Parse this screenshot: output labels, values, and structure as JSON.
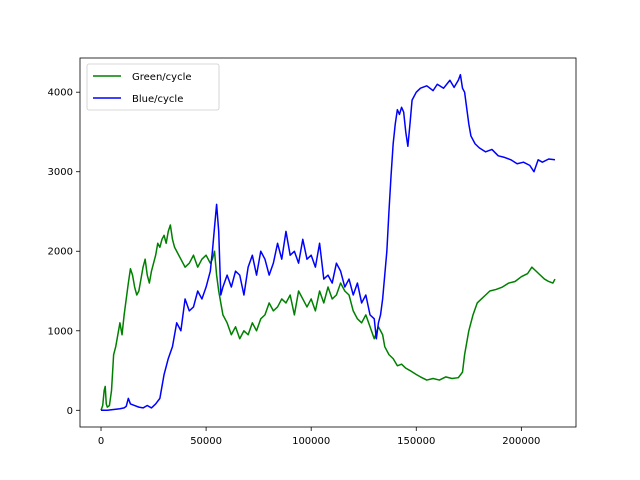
{
  "chart_data": {
    "type": "line",
    "title": "",
    "xlabel": "",
    "ylabel": "",
    "xlim": [
      -10000,
      226000
    ],
    "ylim": [
      -210,
      4430
    ],
    "x_ticks": [
      0,
      50000,
      100000,
      150000,
      200000
    ],
    "x_tick_labels": [
      "0",
      "50000",
      "100000",
      "150000",
      "200000"
    ],
    "y_ticks": [
      0,
      1000,
      2000,
      3000,
      4000
    ],
    "y_tick_labels": [
      "0",
      "1000",
      "2000",
      "3000",
      "4000"
    ],
    "grid": false,
    "legend_position": "top-left",
    "series": [
      {
        "name": "Green/cycle",
        "color": "#008000",
        "points": [
          [
            0,
            0
          ],
          [
            800,
            60
          ],
          [
            1500,
            250
          ],
          [
            2000,
            300
          ],
          [
            2500,
            80
          ],
          [
            3000,
            40
          ],
          [
            4000,
            60
          ],
          [
            5000,
            250
          ],
          [
            6000,
            700
          ],
          [
            7000,
            800
          ],
          [
            8000,
            950
          ],
          [
            9000,
            1100
          ],
          [
            10000,
            950
          ],
          [
            11000,
            1200
          ],
          [
            12000,
            1400
          ],
          [
            13000,
            1600
          ],
          [
            14000,
            1780
          ],
          [
            15000,
            1700
          ],
          [
            16000,
            1550
          ],
          [
            17000,
            1450
          ],
          [
            18000,
            1500
          ],
          [
            19000,
            1650
          ],
          [
            20000,
            1800
          ],
          [
            21000,
            1900
          ],
          [
            22000,
            1700
          ],
          [
            23000,
            1600
          ],
          [
            24000,
            1750
          ],
          [
            25000,
            1850
          ],
          [
            26000,
            1950
          ],
          [
            27000,
            2100
          ],
          [
            28000,
            2050
          ],
          [
            29000,
            2150
          ],
          [
            30000,
            2200
          ],
          [
            31000,
            2100
          ],
          [
            32000,
            2250
          ],
          [
            33000,
            2330
          ],
          [
            34000,
            2150
          ],
          [
            35000,
            2050
          ],
          [
            36000,
            2000
          ],
          [
            37000,
            1950
          ],
          [
            38000,
            1900
          ],
          [
            40000,
            1800
          ],
          [
            42000,
            1850
          ],
          [
            44000,
            1950
          ],
          [
            46000,
            1800
          ],
          [
            48000,
            1900
          ],
          [
            50000,
            1950
          ],
          [
            52000,
            1850
          ],
          [
            53000,
            1900
          ],
          [
            54000,
            2000
          ],
          [
            55000,
            1700
          ],
          [
            56000,
            1500
          ],
          [
            57000,
            1350
          ],
          [
            58000,
            1200
          ],
          [
            60000,
            1100
          ],
          [
            62000,
            950
          ],
          [
            64000,
            1050
          ],
          [
            66000,
            900
          ],
          [
            68000,
            1000
          ],
          [
            70000,
            950
          ],
          [
            72000,
            1100
          ],
          [
            74000,
            1000
          ],
          [
            76000,
            1150
          ],
          [
            78000,
            1200
          ],
          [
            80000,
            1350
          ],
          [
            82000,
            1250
          ],
          [
            84000,
            1300
          ],
          [
            86000,
            1400
          ],
          [
            88000,
            1350
          ],
          [
            90000,
            1450
          ],
          [
            92000,
            1200
          ],
          [
            94000,
            1500
          ],
          [
            96000,
            1400
          ],
          [
            98000,
            1300
          ],
          [
            100000,
            1400
          ],
          [
            102000,
            1250
          ],
          [
            104000,
            1500
          ],
          [
            106000,
            1350
          ],
          [
            108000,
            1550
          ],
          [
            110000,
            1400
          ],
          [
            112000,
            1450
          ],
          [
            114000,
            1600
          ],
          [
            116000,
            1500
          ],
          [
            118000,
            1450
          ],
          [
            120000,
            1250
          ],
          [
            122000,
            1150
          ],
          [
            124000,
            1100
          ],
          [
            126000,
            1200
          ],
          [
            128000,
            1050
          ],
          [
            130000,
            900
          ],
          [
            132000,
            1050
          ],
          [
            134000,
            950
          ],
          [
            135000,
            800
          ],
          [
            137000,
            700
          ],
          [
            139000,
            650
          ],
          [
            141000,
            560
          ],
          [
            143000,
            580
          ],
          [
            145000,
            530
          ],
          [
            147000,
            500
          ],
          [
            150000,
            450
          ],
          [
            152000,
            420
          ],
          [
            155000,
            380
          ],
          [
            158000,
            400
          ],
          [
            161000,
            380
          ],
          [
            164000,
            420
          ],
          [
            167000,
            400
          ],
          [
            170000,
            410
          ],
          [
            172000,
            480
          ],
          [
            173000,
            700
          ],
          [
            175000,
            1000
          ],
          [
            177000,
            1200
          ],
          [
            179000,
            1350
          ],
          [
            181000,
            1400
          ],
          [
            183000,
            1450
          ],
          [
            185000,
            1500
          ],
          [
            188000,
            1520
          ],
          [
            191000,
            1550
          ],
          [
            194000,
            1600
          ],
          [
            197000,
            1620
          ],
          [
            200000,
            1680
          ],
          [
            203000,
            1720
          ],
          [
            205000,
            1800
          ],
          [
            207000,
            1750
          ],
          [
            209000,
            1700
          ],
          [
            211000,
            1650
          ],
          [
            213000,
            1620
          ],
          [
            215000,
            1600
          ],
          [
            216000,
            1650
          ]
        ]
      },
      {
        "name": "Blue/cycle",
        "color": "#0000ff",
        "points": [
          [
            0,
            0
          ],
          [
            3000,
            0
          ],
          [
            6000,
            10
          ],
          [
            9000,
            20
          ],
          [
            11000,
            30
          ],
          [
            12000,
            50
          ],
          [
            13000,
            150
          ],
          [
            14000,
            80
          ],
          [
            16000,
            60
          ],
          [
            18000,
            40
          ],
          [
            20000,
            30
          ],
          [
            22000,
            60
          ],
          [
            24000,
            30
          ],
          [
            26000,
            80
          ],
          [
            28000,
            150
          ],
          [
            29000,
            300
          ],
          [
            30000,
            450
          ],
          [
            31000,
            550
          ],
          [
            32000,
            650
          ],
          [
            34000,
            800
          ],
          [
            36000,
            1100
          ],
          [
            38000,
            1000
          ],
          [
            40000,
            1400
          ],
          [
            42000,
            1250
          ],
          [
            44000,
            1300
          ],
          [
            46000,
            1500
          ],
          [
            48000,
            1400
          ],
          [
            50000,
            1550
          ],
          [
            52000,
            1750
          ],
          [
            53000,
            2000
          ],
          [
            54000,
            2300
          ],
          [
            55000,
            2590
          ],
          [
            56000,
            2250
          ],
          [
            57000,
            1450
          ],
          [
            58000,
            1550
          ],
          [
            60000,
            1700
          ],
          [
            62000,
            1550
          ],
          [
            64000,
            1750
          ],
          [
            66000,
            1700
          ],
          [
            68000,
            1450
          ],
          [
            70000,
            1800
          ],
          [
            72000,
            1950
          ],
          [
            74000,
            1700
          ],
          [
            76000,
            2000
          ],
          [
            78000,
            1900
          ],
          [
            80000,
            1700
          ],
          [
            82000,
            1850
          ],
          [
            84000,
            2100
          ],
          [
            86000,
            1900
          ],
          [
            88000,
            2250
          ],
          [
            90000,
            1950
          ],
          [
            92000,
            2000
          ],
          [
            94000,
            1850
          ],
          [
            96000,
            2150
          ],
          [
            98000,
            1900
          ],
          [
            100000,
            1950
          ],
          [
            102000,
            1800
          ],
          [
            104000,
            2100
          ],
          [
            106000,
            1650
          ],
          [
            108000,
            1700
          ],
          [
            110000,
            1600
          ],
          [
            112000,
            1850
          ],
          [
            114000,
            1750
          ],
          [
            116000,
            1550
          ],
          [
            118000,
            1650
          ],
          [
            120000,
            1450
          ],
          [
            122000,
            1600
          ],
          [
            124000,
            1350
          ],
          [
            126000,
            1450
          ],
          [
            128000,
            1200
          ],
          [
            130000,
            1150
          ],
          [
            131000,
            900
          ],
          [
            132000,
            1100
          ],
          [
            133000,
            1200
          ],
          [
            134000,
            1400
          ],
          [
            135000,
            1700
          ],
          [
            136000,
            2000
          ],
          [
            137000,
            2500
          ],
          [
            138000,
            2950
          ],
          [
            139000,
            3350
          ],
          [
            140000,
            3600
          ],
          [
            141000,
            3780
          ],
          [
            142000,
            3720
          ],
          [
            143000,
            3810
          ],
          [
            144000,
            3750
          ],
          [
            145000,
            3500
          ],
          [
            146000,
            3320
          ],
          [
            147000,
            3600
          ],
          [
            148000,
            3900
          ],
          [
            150000,
            4000
          ],
          [
            152000,
            4050
          ],
          [
            155000,
            4080
          ],
          [
            158000,
            4020
          ],
          [
            160000,
            4100
          ],
          [
            163000,
            4050
          ],
          [
            166000,
            4150
          ],
          [
            168000,
            4060
          ],
          [
            170000,
            4150
          ],
          [
            171000,
            4220
          ],
          [
            172000,
            4050
          ],
          [
            173000,
            4000
          ],
          [
            174000,
            3800
          ],
          [
            175000,
            3600
          ],
          [
            176000,
            3450
          ],
          [
            178000,
            3350
          ],
          [
            180000,
            3300
          ],
          [
            183000,
            3250
          ],
          [
            186000,
            3280
          ],
          [
            189000,
            3200
          ],
          [
            192000,
            3180
          ],
          [
            195000,
            3150
          ],
          [
            198000,
            3100
          ],
          [
            201000,
            3120
          ],
          [
            204000,
            3080
          ],
          [
            206000,
            3000
          ],
          [
            208000,
            3150
          ],
          [
            210000,
            3120
          ],
          [
            213000,
            3160
          ],
          [
            216000,
            3150
          ]
        ]
      }
    ]
  }
}
